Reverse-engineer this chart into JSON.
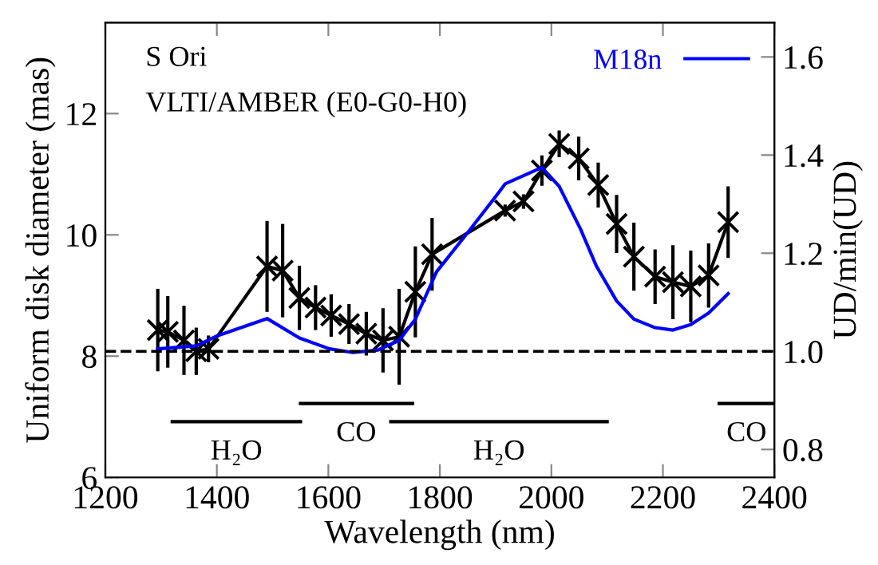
{
  "chart_data": {
    "type": "line",
    "xlabel": "Wavelength (nm)",
    "ylabel": "Uniform disk diameter (mas)",
    "y2label": "UD/min(UD)",
    "xlim": [
      1200,
      2400
    ],
    "xticks": [
      1200,
      1400,
      1600,
      1800,
      2000,
      2200,
      2400
    ],
    "ylim": [
      6,
      13.5
    ],
    "yticks": [
      6,
      8,
      10,
      12
    ],
    "y2lim": [
      0.743,
      1.67
    ],
    "y2ticks": [
      0.8,
      {
        "value": 1.0,
        "label": "1.0"
      },
      1.2,
      1.4,
      1.6
    ],
    "legend": "top right",
    "grid": false,
    "series": [
      {
        "marker": "cross",
        "color": "#000000",
        "x": [
          1294,
          1312,
          1341,
          1363,
          1385,
          1490,
          1518,
          1548,
          1577,
          1605,
          1637,
          1668,
          1698,
          1727,
          1756,
          1786,
          1917,
          1950,
          1983,
          2014,
          2049,
          2084,
          2117,
          2148,
          2186,
          2218,
          2250,
          2282,
          2317
        ],
        "values": [
          8.43,
          8.4,
          8.26,
          8.08,
          8.12,
          9.48,
          9.41,
          8.96,
          8.8,
          8.67,
          8.53,
          8.37,
          8.26,
          8.32,
          9.06,
          9.68,
          10.4,
          10.55,
          11.06,
          11.5,
          11.26,
          10.82,
          10.18,
          9.64,
          9.31,
          9.22,
          9.15,
          9.33,
          10.21
        ],
        "errors": [
          0.68,
          0.59,
          0.57,
          0.39,
          0.22,
          0.75,
          0.77,
          0.53,
          0.37,
          0.35,
          0.33,
          0.36,
          0.53,
          0.79,
          0.75,
          0.6,
          0.1,
          0.12,
          0.25,
          0.22,
          0.36,
          0.37,
          0.48,
          0.56,
          0.45,
          0.61,
          0.59,
          0.53,
          0.59
        ]
      },
      {
        "name": "M18n",
        "color": "#0000ff",
        "x": [
          1294,
          1363,
          1402,
          1490,
          1548,
          1602,
          1644,
          1689,
          1727,
          1756,
          1794,
          1851,
          1899,
          1917,
          1983,
          2014,
          2052,
          2081,
          2117,
          2148,
          2186,
          2218,
          2250,
          2282,
          2317
        ],
        "values": [
          8.12,
          8.17,
          8.34,
          8.62,
          8.3,
          8.12,
          8.06,
          8.1,
          8.26,
          8.61,
          9.39,
          10.05,
          10.62,
          10.84,
          11.11,
          10.8,
          10.1,
          9.48,
          8.91,
          8.61,
          8.47,
          8.43,
          8.52,
          8.71,
          9.03
        ]
      },
      {
        "color": "#000000",
        "x": [
          1320,
          1550
        ],
        "values": [
          6.92,
          6.92
        ]
      },
      {
        "color": "#000000",
        "x": [
          1550,
          1751
        ],
        "values": [
          7.22,
          7.22
        ]
      },
      {
        "color": "#000000",
        "x": [
          1712,
          2100
        ],
        "values": [
          6.92,
          6.92
        ]
      },
      {
        "color": "#000000",
        "x": [
          2301,
          2400
        ],
        "values": [
          7.22,
          7.22
        ]
      }
    ],
    "ref_lines": [
      {
        "axis": "y2",
        "value": 1.0,
        "color": "#000000",
        "line_style": "dashed"
      }
    ],
    "annotations": [
      "S Ori",
      "VLTI/AMBER (E0-G0-H0)",
      {
        "text": "H₂O",
        "x": 1435,
        "y": 6.92
      },
      {
        "text": "CO",
        "x": 1650,
        "y": 7.22
      },
      {
        "text": "H₂O",
        "x": 1906,
        "y": 6.92
      },
      {
        "text": "CO",
        "x": 2350,
        "y": 7.22
      }
    ]
  }
}
